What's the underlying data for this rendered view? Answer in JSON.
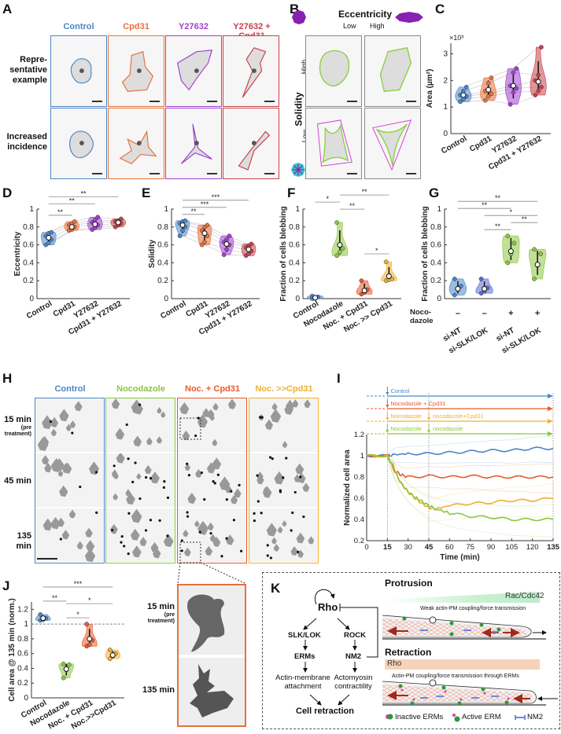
{
  "panel_letters": {
    "A": "A",
    "B": "B",
    "C": "C",
    "D": "D",
    "E": "E",
    "F": "F",
    "G": "G",
    "H": "H",
    "I": "I",
    "J": "J",
    "K": "K"
  },
  "colors": {
    "control": "#4a86c8",
    "cpd31": "#e8703a",
    "y27632": "#a040d0",
    "combo": "#c8404a",
    "nocodazole": "#8cc63e",
    "noc_cpd31": "#e85a2a",
    "noc_then_cpd31": "#f0b030",
    "si_slk": "#5a6cd0"
  },
  "panelA": {
    "columns": [
      "Control",
      "Cpd31",
      "Y27632",
      "Y27632 + Cpd31"
    ],
    "rows": [
      [
        "Repre-",
        "sentative",
        "example"
      ],
      [
        "Increased",
        "incidence"
      ]
    ]
  },
  "panelB": {
    "eccentricity": "Eccentricity",
    "low": "Low",
    "high": "High",
    "solidity": "Solidity"
  },
  "panelH": {
    "columns": [
      "Control",
      "Nocodazole",
      "Noc. + Cpd31",
      "Noc. >>Cpd31"
    ],
    "rows": [
      [
        "15 min",
        "(pre",
        "treatment)"
      ],
      [
        "45 min"
      ],
      [
        "135 min"
      ]
    ]
  },
  "zoom_inset": {
    "labels": [
      [
        "15 min",
        "(pre",
        "treatment)"
      ],
      [
        "135 min"
      ]
    ]
  },
  "chart_data": [
    {
      "id": "C",
      "type": "violin",
      "ylabel": "Area (µm²)",
      "multiplier": "×10³",
      "ylim": [
        0,
        3.4
      ],
      "yticks": [
        0,
        1,
        2,
        3
      ],
      "paired": true,
      "categories": [
        "Control",
        "Cpd31",
        "Y27632",
        "Cpd31 + Y27632"
      ],
      "color_keys": [
        "control",
        "cpd31",
        "y27632",
        "combo"
      ],
      "values": [
        [
          1.2,
          1.3,
          1.4,
          1.45,
          1.6,
          1.75
        ],
        [
          1.25,
          1.4,
          1.5,
          1.6,
          1.9,
          2.1
        ],
        [
          1.1,
          1.55,
          1.7,
          1.8,
          2.3,
          2.45
        ],
        [
          1.45,
          1.6,
          1.75,
          2.0,
          2.2,
          3.25
        ]
      ],
      "medians": [
        1.45,
        1.65,
        1.8,
        1.95
      ],
      "significance": []
    },
    {
      "id": "D",
      "type": "violin",
      "ylabel": "Eccentricity",
      "ylim": [
        0,
        1
      ],
      "yticks": [
        0,
        0.2,
        0.4,
        0.6,
        0.8,
        1
      ],
      "paired": true,
      "categories": [
        "Control",
        "Cpd31",
        "Y27632",
        "Cpd31 + Y27632"
      ],
      "color_keys": [
        "control",
        "cpd31",
        "y27632",
        "combo"
      ],
      "values": [
        [
          0.6,
          0.62,
          0.66,
          0.7,
          0.73,
          0.74
        ],
        [
          0.76,
          0.77,
          0.8,
          0.82,
          0.84,
          0.86
        ],
        [
          0.77,
          0.79,
          0.82,
          0.85,
          0.88,
          0.91
        ],
        [
          0.8,
          0.82,
          0.84,
          0.86,
          0.87,
          0.89
        ]
      ],
      "medians": [
        0.68,
        0.8,
        0.83,
        0.85
      ],
      "significance": [
        {
          "from": 0,
          "to": 1,
          "label": "**"
        },
        {
          "from": 0,
          "to": 2,
          "label": "**"
        },
        {
          "from": 0,
          "to": 3,
          "label": "**"
        }
      ]
    },
    {
      "id": "E",
      "type": "violin",
      "ylabel": "Solidity",
      "ylim": [
        0,
        1
      ],
      "yticks": [
        0,
        0.2,
        0.4,
        0.6,
        0.8,
        1
      ],
      "paired": true,
      "categories": [
        "Control",
        "Cpd31",
        "Y27632",
        "Cpd31 + Y27632"
      ],
      "color_keys": [
        "control",
        "cpd31",
        "y27632",
        "combo"
      ],
      "values": [
        [
          0.7,
          0.76,
          0.8,
          0.84,
          0.86,
          0.87
        ],
        [
          0.6,
          0.63,
          0.7,
          0.76,
          0.8,
          0.82
        ],
        [
          0.49,
          0.55,
          0.6,
          0.63,
          0.66,
          0.7
        ],
        [
          0.48,
          0.5,
          0.53,
          0.57,
          0.59,
          0.61
        ]
      ],
      "medians": [
        0.82,
        0.73,
        0.61,
        0.55
      ],
      "significance": [
        {
          "from": 0,
          "to": 1,
          "label": "**"
        },
        {
          "from": 0,
          "to": 2,
          "label": "***"
        },
        {
          "from": 0,
          "to": 3,
          "label": "***"
        }
      ]
    },
    {
      "id": "F",
      "type": "violin",
      "ylabel": "Fraction of cells blebbing",
      "ylim": [
        0,
        1
      ],
      "yticks": [
        0,
        0.2,
        0.4,
        0.6,
        0.8,
        1
      ],
      "paired": false,
      "categories": [
        "Control",
        "Nocodazole",
        "Noc. + Cpd31",
        "Noc. >> Cpd31"
      ],
      "color_keys": [
        "control",
        "nocodazole",
        "noc_cpd31",
        "noc_then_cpd31"
      ],
      "values": [
        [
          0.0,
          0.01,
          0.02,
          0.03
        ],
        [
          0.48,
          0.52,
          0.56,
          0.85
        ],
        [
          0.05,
          0.07,
          0.1,
          0.2
        ],
        [
          0.2,
          0.21,
          0.22,
          0.41
        ]
      ],
      "medians": [
        0.01,
        0.6,
        0.09,
        0.25
      ],
      "significance": [
        {
          "from": 2,
          "to": 3,
          "label": "*"
        },
        {
          "from": 1,
          "to": 2,
          "label": "**"
        },
        {
          "from": 0,
          "to": 1,
          "label": "*"
        },
        {
          "from": 1,
          "to": 3,
          "label": "**"
        }
      ]
    },
    {
      "id": "G",
      "type": "violin",
      "ylabel": "Fraction of cells blebbing",
      "ylim": [
        0,
        1
      ],
      "yticks": [
        0,
        0.2,
        0.4,
        0.6,
        0.8,
        1
      ],
      "paired": false,
      "categories": [
        "si-NT",
        "si-SLK/LOK",
        "si-NT",
        "si-SLK/LOK"
      ],
      "color_keys": [
        "control",
        "si_slk",
        "nocodazole",
        "nocodazole"
      ],
      "condition_label": [
        "Noco-",
        "dazole"
      ],
      "condition": [
        "–",
        "–",
        "+",
        "+"
      ],
      "values": [
        [
          0.04,
          0.1,
          0.14,
          0.22
        ],
        [
          0.06,
          0.08,
          0.12,
          0.22
        ],
        [
          0.4,
          0.5,
          0.62,
          0.7
        ],
        [
          0.22,
          0.37,
          0.5,
          0.55
        ]
      ],
      "medians": [
        0.11,
        0.11,
        0.53,
        0.38
      ],
      "significance": [
        {
          "from": 1,
          "to": 2,
          "label": "**"
        },
        {
          "from": 2,
          "to": 3,
          "label": "**"
        },
        {
          "from": 1,
          "to": 3,
          "label": "*"
        },
        {
          "from": 0,
          "to": 2,
          "label": "**"
        },
        {
          "from": 0,
          "to": 3,
          "label": "**"
        }
      ]
    },
    {
      "id": "I",
      "type": "line",
      "xlabel": "Time (min)",
      "ylabel": "Normalized cell area",
      "xlim": [
        0,
        135
      ],
      "ylim": [
        0.2,
        1.2
      ],
      "xticks": [
        0,
        15,
        30,
        45,
        60,
        75,
        90,
        105,
        120,
        135
      ],
      "yticks": [
        0.2,
        0.4,
        0.6,
        0.8,
        1,
        1.2
      ],
      "timeline": [
        {
          "color_key": "control",
          "labels": [
            "Control"
          ]
        },
        {
          "color_key": "noc_cpd31",
          "labels": [
            "Nocodazole + Cpd31"
          ]
        },
        {
          "color_key": "noc_then_cpd31",
          "labels": [
            "Nocodazole",
            "nocodazole+Cpd31"
          ]
        },
        {
          "color_key": "nocodazole",
          "labels": [
            "Nocodazole",
            "nocodazole"
          ]
        }
      ],
      "series": [
        {
          "name": "Control",
          "color_key": "control",
          "x": [
            0,
            15,
            20,
            30,
            45,
            60,
            75,
            90,
            105,
            120,
            135
          ],
          "y": [
            1.0,
            1.0,
            1.01,
            1.02,
            1.02,
            1.03,
            1.04,
            1.05,
            1.05,
            1.07,
            1.07
          ]
        },
        {
          "name": "Nocodazole + Cpd31",
          "color_key": "noc_cpd31",
          "x": [
            0,
            15,
            18,
            21,
            25,
            30,
            45,
            60,
            75,
            90,
            105,
            120,
            135
          ],
          "y": [
            1.0,
            1.0,
            0.93,
            0.85,
            0.82,
            0.8,
            0.81,
            0.8,
            0.81,
            0.8,
            0.8,
            0.8,
            0.8
          ]
        },
        {
          "name": "Nocodazole >> Cpd31",
          "color_key": "noc_then_cpd31",
          "x": [
            0,
            15,
            20,
            25,
            30,
            35,
            40,
            45,
            50,
            60,
            75,
            90,
            105,
            120,
            135
          ],
          "y": [
            1.0,
            1.0,
            0.86,
            0.74,
            0.66,
            0.6,
            0.55,
            0.51,
            0.5,
            0.53,
            0.55,
            0.56,
            0.58,
            0.58,
            0.6
          ]
        },
        {
          "name": "Nocodazole",
          "color_key": "nocodazole",
          "x": [
            0,
            15,
            20,
            25,
            30,
            35,
            40,
            45,
            50,
            60,
            75,
            90,
            105,
            120,
            135
          ],
          "y": [
            1.0,
            1.0,
            0.86,
            0.74,
            0.66,
            0.61,
            0.57,
            0.53,
            0.5,
            0.46,
            0.43,
            0.42,
            0.4,
            0.4,
            0.4
          ]
        }
      ]
    },
    {
      "id": "J",
      "type": "violin",
      "ylabel": "Cell area @ 135 min (norm.)",
      "ylim": [
        0,
        1.3
      ],
      "yticks": [
        0,
        0.2,
        0.4,
        0.6,
        0.8,
        1,
        1.2
      ],
      "paired": false,
      "reference_line": 1,
      "categories": [
        "Control",
        "Nocodazole",
        "Noc. + Cpd31",
        "Noc.>>Cpd31"
      ],
      "color_keys": [
        "control",
        "nocodazole",
        "noc_cpd31",
        "noc_then_cpd31"
      ],
      "values": [
        [
          1.05,
          1.06,
          1.08,
          1.13
        ],
        [
          0.27,
          0.38,
          0.45,
          0.46
        ],
        [
          0.7,
          0.72,
          0.78,
          1.0
        ],
        [
          0.53,
          0.56,
          0.6,
          0.65
        ]
      ],
      "medians": [
        1.08,
        0.39,
        0.8,
        0.58
      ],
      "significance": [
        {
          "from": 1,
          "to": 2,
          "label": "*"
        },
        {
          "from": 0,
          "to": 1,
          "label": "**"
        },
        {
          "from": 1,
          "to": 3,
          "label": "*"
        },
        {
          "from": 0,
          "to": 3,
          "label": "***"
        }
      ]
    }
  ],
  "panelK": {
    "rho": "Rho",
    "slk": "SLK/LOK",
    "rock": "ROCK",
    "erms": "ERMs",
    "nm2": "NM2",
    "actin_membrane": [
      "Actin-membrane",
      "attachment"
    ],
    "actomyosin": [
      "Actomyosin",
      "contractility"
    ],
    "cell_retraction": "Cell retraction",
    "protrusion": "Protrusion",
    "rac": "Rac/Cdc42",
    "weak_coupling": "Weak actin-PM coupling/force transmission",
    "retraction": "Retraction",
    "rho_bar": "Rho",
    "erm_coupling": "Actin-PM coupling/force transmission through ERMs",
    "legend": [
      "Inactive ERMs",
      "Active ERM",
      "NM2"
    ]
  }
}
